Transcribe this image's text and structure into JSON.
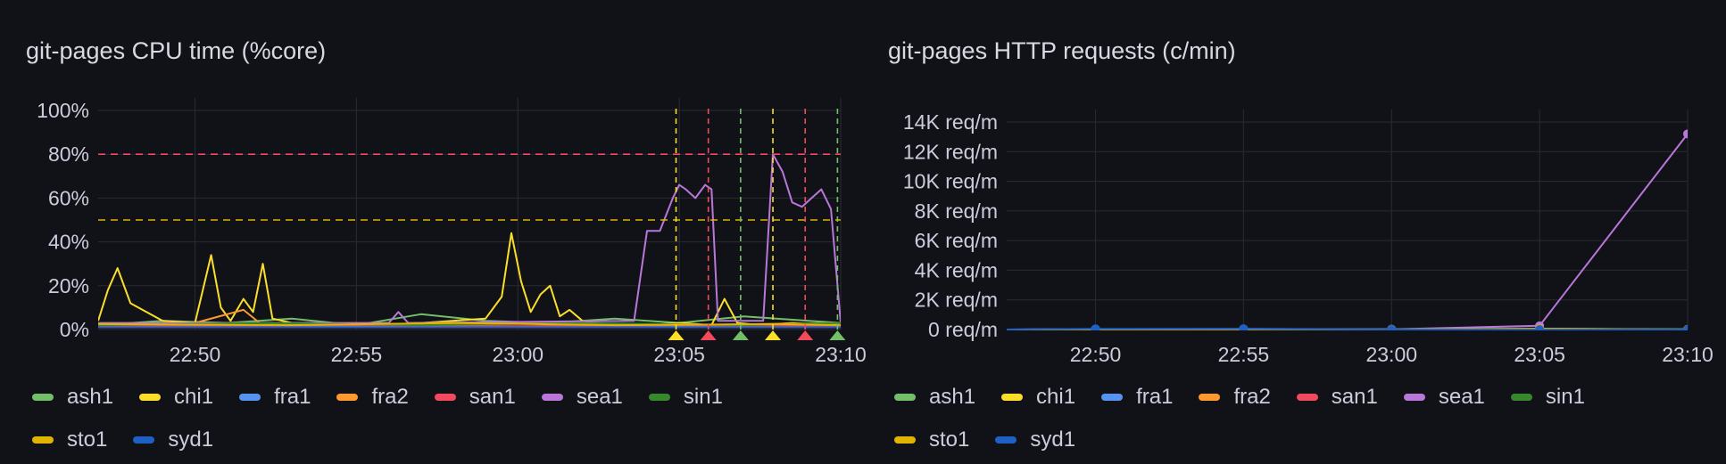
{
  "colors": {
    "background": "#111217",
    "grid": "#2a2b31",
    "text": "#ccccdc",
    "threshold_red": "#f2495c",
    "threshold_yellow": "#e0b400"
  },
  "chart_data": [
    {
      "type": "line",
      "title": "git-pages CPU time (%core)",
      "xlabel": "",
      "ylabel": "",
      "x_ticks": [
        "22:50",
        "22:55",
        "23:00",
        "23:05",
        "23:10"
      ],
      "x_range": [
        "22:47",
        "23:10"
      ],
      "y_ticks": [
        "0%",
        "20%",
        "40%",
        "60%",
        "80%",
        "100%"
      ],
      "ylim": [
        0,
        100
      ],
      "unit": "%",
      "grid": true,
      "legend_position": "bottom",
      "thresholds": [
        {
          "value": 80,
          "color": "#f2495c",
          "style": "dashed"
        },
        {
          "value": 50,
          "color": "#e0b400",
          "style": "dashed"
        }
      ],
      "annotations": [
        {
          "time": "23:04.9",
          "color": "#fade2a"
        },
        {
          "time": "23:05.9",
          "color": "#f2495c"
        },
        {
          "time": "23:06.9",
          "color": "#73bf69"
        },
        {
          "time": "23:07.9",
          "color": "#fade2a"
        },
        {
          "time": "23:08.9",
          "color": "#f2495c"
        },
        {
          "time": "23:09.9",
          "color": "#73bf69"
        }
      ],
      "series": [
        {
          "name": "ash1",
          "color": "#73bf69",
          "x": [
            "22:47",
            "22:49",
            "22:51",
            "22:53",
            "22:55",
            "22:57",
            "22:59",
            "23:01",
            "23:03",
            "23:05",
            "23:07",
            "23:09",
            "23:10"
          ],
          "y": [
            2,
            4,
            3,
            5,
            2,
            7,
            4,
            3,
            5,
            3,
            6,
            4,
            3
          ]
        },
        {
          "name": "chi1",
          "color": "#fade2a",
          "x": [
            "22:47",
            "22:47.3",
            "22:47.6",
            "22:48",
            "22:49",
            "22:50",
            "22:50.5",
            "22:50.8",
            "22:51.1",
            "22:51.5",
            "22:51.8",
            "22:52.1",
            "22:52.4",
            "22:53",
            "22:56",
            "22:59",
            "22:59.5",
            "22:59.8",
            "23:00.1",
            "23:00.4",
            "23:00.7",
            "23:01",
            "23:01.3",
            "23:01.6",
            "23:02",
            "23:02.3",
            "23:04",
            "23:05",
            "23:06",
            "23:06.4",
            "23:06.8",
            "23:07.5",
            "23:08.5",
            "23:09.5",
            "23:10"
          ],
          "y": [
            4,
            18,
            28,
            12,
            4,
            3,
            34,
            10,
            4,
            14,
            8,
            30,
            5,
            3,
            2,
            5,
            15,
            44,
            22,
            8,
            16,
            20,
            6,
            9,
            4,
            3,
            2,
            3,
            2,
            14,
            3,
            2,
            3,
            2,
            3
          ]
        },
        {
          "name": "fra1",
          "color": "#5794f2",
          "x": [
            "22:47",
            "22:55",
            "23:00",
            "23:05",
            "23:10"
          ],
          "y": [
            1,
            1.5,
            1,
            1.5,
            1
          ]
        },
        {
          "name": "fra2",
          "color": "#ff9830",
          "x": [
            "22:47",
            "22:50",
            "22:51.5",
            "22:52",
            "22:55",
            "23:00",
            "23:05",
            "23:10"
          ],
          "y": [
            2,
            3,
            9,
            3,
            2,
            3,
            2,
            3
          ]
        },
        {
          "name": "san1",
          "color": "#f2495c",
          "x": [
            "22:47",
            "22:55",
            "23:00",
            "23:05",
            "23:10"
          ],
          "y": [
            1.5,
            2,
            1.5,
            2,
            1.5
          ]
        },
        {
          "name": "sea1",
          "color": "#b877d9",
          "x": [
            "22:47",
            "22:56",
            "22:56.3",
            "22:56.6",
            "23:03.6",
            "23:04",
            "23:04.4",
            "23:04.8",
            "23:05",
            "23:05.2",
            "23:05.5",
            "23:05.8",
            "23:06",
            "23:06.2",
            "23:06.4",
            "23:06.6",
            "23:07.6",
            "23:07.9",
            "23:08.2",
            "23:08.5",
            "23:08.8",
            "23:09.1",
            "23:09.4",
            "23:09.7",
            "23:10"
          ],
          "y": [
            3,
            3,
            8,
            3,
            4,
            45,
            45,
            60,
            66,
            64,
            60,
            66,
            64,
            4,
            4,
            4,
            4,
            80,
            72,
            58,
            56,
            60,
            64,
            55,
            3
          ]
        },
        {
          "name": "sin1",
          "color": "#37872d",
          "x": [
            "22:47",
            "22:52",
            "22:57",
            "23:02",
            "23:07",
            "23:10"
          ],
          "y": [
            2,
            3,
            2,
            3,
            2,
            3
          ]
        },
        {
          "name": "sto1",
          "color": "#e0b400",
          "x": [
            "22:47",
            "22:53",
            "22:58",
            "23:03",
            "23:08",
            "23:10"
          ],
          "y": [
            2.5,
            2,
            3,
            2,
            2.5,
            2
          ]
        },
        {
          "name": "syd1",
          "color": "#1f60c4",
          "x": [
            "22:47",
            "22:55",
            "23:00",
            "23:05",
            "23:10"
          ],
          "y": [
            1,
            1,
            1,
            1,
            1
          ]
        }
      ]
    },
    {
      "type": "line",
      "title": "git-pages HTTP requests (c/min)",
      "xlabel": "",
      "ylabel": "",
      "x_ticks": [
        "22:50",
        "22:55",
        "23:00",
        "23:05",
        "23:10"
      ],
      "x_range": [
        "22:47",
        "23:10"
      ],
      "y_ticks": [
        "0 req/m",
        "2K req/m",
        "4K req/m",
        "6K req/m",
        "8K req/m",
        "10K req/m",
        "12K req/m",
        "14K req/m"
      ],
      "ylim": [
        0,
        15000
      ],
      "unit": "req/m",
      "grid": true,
      "legend_position": "bottom",
      "series": [
        {
          "name": "ash1",
          "color": "#73bf69",
          "x": [
            "22:47",
            "22:50",
            "22:55",
            "23:00",
            "23:05",
            "23:10"
          ],
          "y": [
            0,
            20,
            30,
            10,
            40,
            10
          ]
        },
        {
          "name": "chi1",
          "color": "#fade2a",
          "x": [
            "22:47",
            "22:50",
            "22:55",
            "23:00",
            "23:05",
            "23:10"
          ],
          "y": [
            0,
            15,
            25,
            5,
            50,
            5
          ]
        },
        {
          "name": "fra1",
          "color": "#5794f2",
          "x": [
            "22:47",
            "22:50",
            "22:55",
            "23:00",
            "23:05",
            "23:10"
          ],
          "y": [
            0,
            10,
            15,
            0,
            20,
            0
          ]
        },
        {
          "name": "fra2",
          "color": "#ff9830",
          "x": [
            "22:47",
            "22:50",
            "22:55",
            "23:00",
            "23:05",
            "23:10"
          ],
          "y": [
            0,
            5,
            10,
            0,
            15,
            0
          ]
        },
        {
          "name": "san1",
          "color": "#f2495c",
          "x": [
            "22:47",
            "22:50",
            "22:55",
            "23:00",
            "23:05",
            "23:10"
          ],
          "y": [
            0,
            5,
            10,
            0,
            10,
            0
          ]
        },
        {
          "name": "sea1",
          "color": "#b877d9",
          "x": [
            "22:47",
            "22:50",
            "22:55",
            "23:00",
            "23:05",
            "23:10"
          ],
          "y": [
            0,
            30,
            40,
            20,
            250,
            13200
          ]
        },
        {
          "name": "sin1",
          "color": "#37872d",
          "x": [
            "22:47",
            "22:50",
            "22:55",
            "23:00",
            "23:05",
            "23:10"
          ],
          "y": [
            0,
            10,
            20,
            5,
            30,
            5
          ]
        },
        {
          "name": "sto1",
          "color": "#e0b400",
          "x": [
            "22:47",
            "22:50",
            "22:55",
            "23:00",
            "23:05",
            "23:10"
          ],
          "y": [
            0,
            10,
            15,
            5,
            60,
            5
          ]
        },
        {
          "name": "syd1",
          "color": "#1f60c4",
          "x": [
            "22:47",
            "22:50",
            "22:55",
            "23:00",
            "23:05",
            "23:10"
          ],
          "y": [
            0,
            40,
            50,
            0,
            0,
            0
          ]
        }
      ]
    }
  ]
}
